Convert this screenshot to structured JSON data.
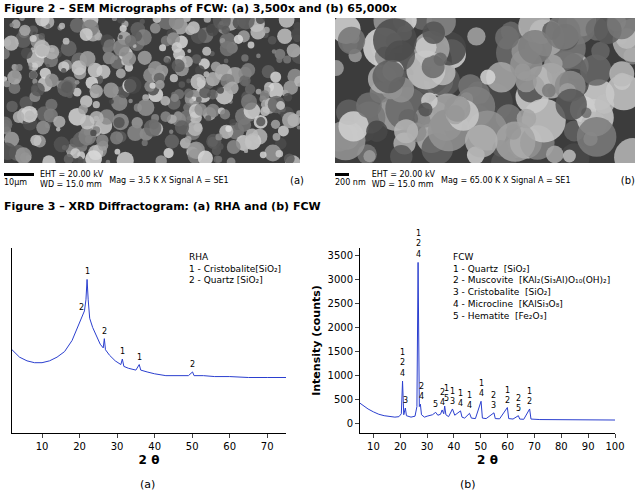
{
  "figure2": {
    "caption": "Figure 2 – SEM Micrographs of FCW: (a) 3,500x and (b) 65,000x",
    "panels": [
      {
        "label": "(a)",
        "scale_bar": "10µm",
        "eht": "EHT = 20.00 kV",
        "wd": "WD = 15.0 mm",
        "mag": "Mag = 3.5 K X  Signal A = SE1"
      },
      {
        "label": "(b)",
        "scale_bar": "200 nm",
        "eht": "EHT = 20.00 kV",
        "wd": "WD = 15.0 mm",
        "mag": "Mag = 65.00 K X  Signal A = SE1"
      }
    ]
  },
  "figure3_caption": "Figure 3 – XRD Diffractogram: (a) RHA and (b) FCW",
  "chart_data": [
    {
      "type": "line",
      "panel": "(a)",
      "x_label": "2 θ",
      "color": "#2b3fcf",
      "tick_labels": "x",
      "grid": false,
      "xlim": [
        2,
        75
      ],
      "xticks": [
        10,
        20,
        30,
        40,
        50,
        60,
        70
      ],
      "ylim": [
        0,
        100
      ],
      "key_box": [
        "RHA",
        "1 - Cristobalite[SiO₂]",
        "2 - Quartz [SiO₂]"
      ],
      "x": [
        2,
        4,
        6,
        8,
        10,
        12,
        14,
        16,
        18,
        19,
        20,
        20.8,
        21.3,
        21.7,
        22.0,
        22.3,
        22.7,
        23.5,
        24.5,
        25.5,
        26.3,
        26.6,
        26.9,
        28,
        29.5,
        31,
        31.4,
        31.8,
        33,
        35,
        35.9,
        36.3,
        38,
        40,
        43,
        46,
        49,
        50.1,
        50.5,
        53,
        56,
        60,
        65,
        70,
        75
      ],
      "values": [
        45,
        41,
        39,
        38,
        38,
        39,
        41,
        44,
        50,
        55,
        60,
        64,
        66,
        72,
        83,
        72,
        62,
        57,
        52,
        48,
        46,
        51,
        45,
        42,
        39,
        37,
        40,
        36,
        35,
        34,
        37,
        34,
        33,
        32,
        31,
        31,
        31,
        33,
        31,
        31,
        30.5,
        30.5,
        30,
        30,
        30
      ],
      "annotations": [
        {
          "x": 20.6,
          "y": 64,
          "lines": [
            "2"
          ]
        },
        {
          "x": 22.0,
          "y": 83,
          "lines": [
            "1"
          ]
        },
        {
          "x": 26.6,
          "y": 51,
          "lines": [
            "2"
          ]
        },
        {
          "x": 31.4,
          "y": 40,
          "lines": [
            "1"
          ]
        },
        {
          "x": 35.9,
          "y": 37,
          "lines": [
            "1"
          ]
        },
        {
          "x": 50.1,
          "y": 33,
          "lines": [
            "2"
          ]
        }
      ]
    },
    {
      "type": "line",
      "panel": "(b)",
      "x_label": "2 θ",
      "y_label": "Intensity (counts)",
      "color": "#2b3fcf",
      "grid": false,
      "xlim": [
        5,
        100
      ],
      "xticks": [
        10,
        20,
        30,
        40,
        50,
        60,
        70,
        80,
        90,
        100
      ],
      "ylim": [
        -200,
        3650
      ],
      "yticks": [
        0,
        500,
        1000,
        1500,
        2000,
        2500,
        3000,
        3500
      ],
      "key_box": [
        "FCW",
        "1 - Quartz  [SiO₂]",
        "2 - Muscovite  [KAl₂(Si₃Al)O₁₀(OH)₂]",
        "3 - Cristobalite  [SiO₂]",
        "4 - Microcline  [KAlSi₃O₈]",
        "5 - Hematite  [Fe₂O₃]"
      ],
      "x": [
        5,
        6,
        8,
        10,
        12,
        14,
        16,
        18,
        19.5,
        20.4,
        20.85,
        21.3,
        21.9,
        22.3,
        24,
        25.5,
        26.2,
        26.64,
        27.1,
        27.5,
        27.9,
        29,
        30,
        31,
        32,
        33.2,
        34,
        35,
        35.6,
        36.2,
        36.55,
        37,
        38,
        39.45,
        40.3,
        42.45,
        43,
        44,
        45.8,
        46.5,
        48,
        50.1,
        50.6,
        52,
        54.9,
        55.4,
        57,
        59.9,
        60.4,
        62,
        64,
        64.5,
        66,
        68.2,
        68.7,
        72,
        76,
        80,
        85,
        90,
        95,
        100
      ],
      "values": [
        420,
        380,
        300,
        240,
        190,
        160,
        140,
        130,
        140,
        200,
        880,
        180,
        320,
        160,
        130,
        150,
        350,
        3350,
        350,
        400,
        180,
        130,
        150,
        160,
        180,
        230,
        170,
        190,
        280,
        200,
        360,
        180,
        140,
        300,
        170,
        260,
        130,
        110,
        210,
        110,
        100,
        460,
        110,
        100,
        220,
        100,
        95,
        330,
        100,
        90,
        160,
        90,
        85,
        300,
        90,
        80,
        80,
        80,
        75,
        75,
        70,
        70
      ],
      "annotations": [
        {
          "x": 20.85,
          "y": 880,
          "lines": [
            "1",
            "2",
            "4"
          ]
        },
        {
          "x": 21.9,
          "y": 320,
          "lines": [
            "3"
          ]
        },
        {
          "x": 26.64,
          "y": 3350,
          "lines": [
            "1",
            "2",
            "4"
          ]
        },
        {
          "x": 27.9,
          "y": 400,
          "lines": [
            "2",
            "4"
          ]
        },
        {
          "x": 33.2,
          "y": 230,
          "lines": [
            "5"
          ]
        },
        {
          "x": 35.6,
          "y": 280,
          "lines": [
            "2",
            "4"
          ]
        },
        {
          "x": 37.2,
          "y": 360,
          "lines": [
            "1",
            "5"
          ]
        },
        {
          "x": 39.45,
          "y": 300,
          "lines": [
            "1",
            "3"
          ]
        },
        {
          "x": 42.45,
          "y": 260,
          "lines": [
            "1",
            "4"
          ]
        },
        {
          "x": 45.8,
          "y": 210,
          "lines": [
            "1",
            "4"
          ]
        },
        {
          "x": 50.1,
          "y": 460,
          "lines": [
            "1",
            "4"
          ]
        },
        {
          "x": 54.9,
          "y": 220,
          "lines": [
            "2",
            "3"
          ]
        },
        {
          "x": 59.9,
          "y": 330,
          "lines": [
            "1",
            "2"
          ]
        },
        {
          "x": 64,
          "y": 160,
          "lines": [
            "2",
            "5"
          ]
        },
        {
          "x": 68.2,
          "y": 300,
          "lines": [
            "1",
            "2"
          ]
        }
      ]
    }
  ]
}
